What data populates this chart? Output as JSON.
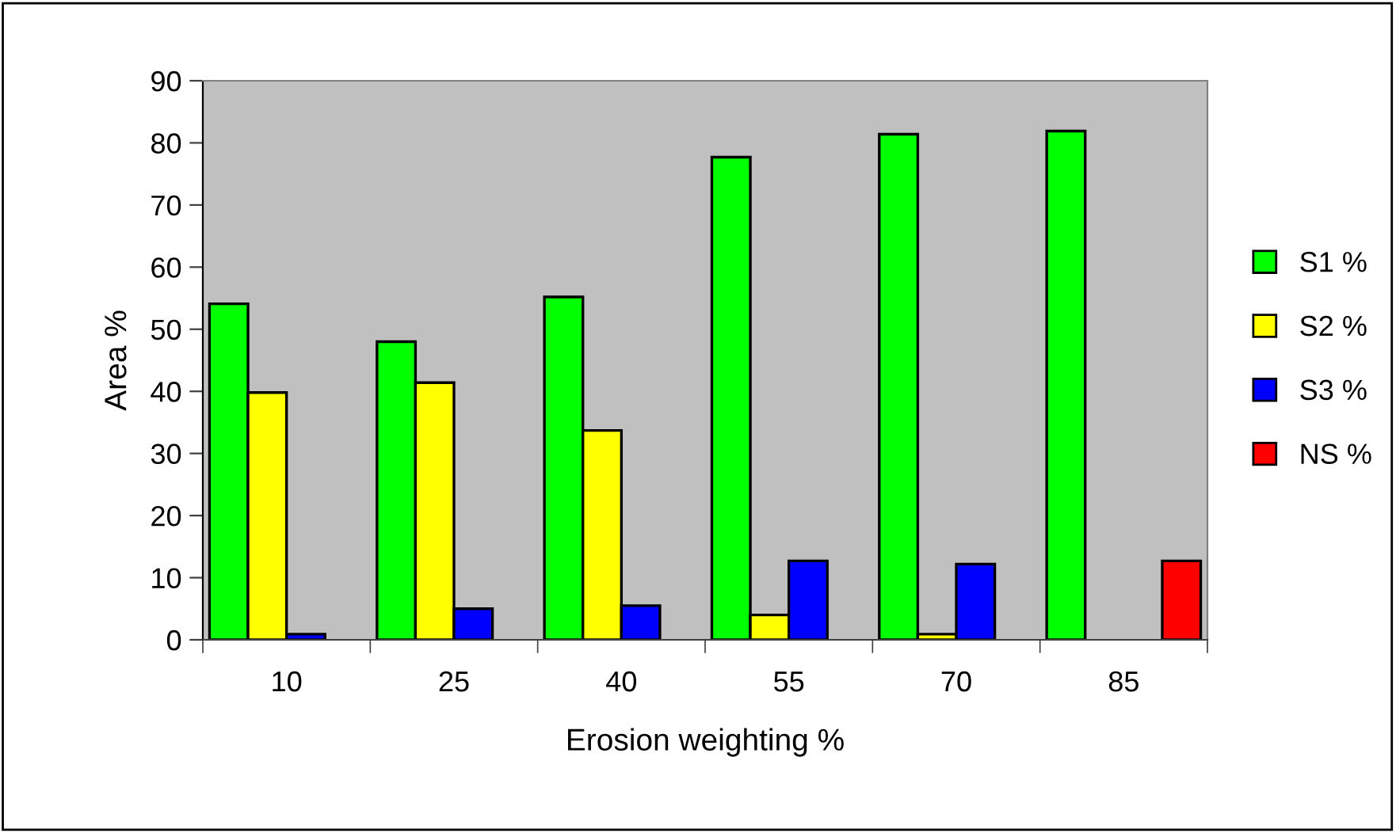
{
  "chart_data": {
    "type": "bar",
    "xlabel": "Erosion weighting %",
    "ylabel": "Area %",
    "categories": [
      "10",
      "25",
      "40",
      "55",
      "70",
      "85"
    ],
    "series": [
      {
        "name": "S1 %",
        "color": "#00ff00",
        "values": [
          54.1,
          48.0,
          55.2,
          77.7,
          81.4,
          81.9
        ]
      },
      {
        "name": "S2 %",
        "color": "#ffff00",
        "values": [
          39.8,
          41.4,
          33.7,
          4.0,
          0.9,
          null
        ]
      },
      {
        "name": "S3 %",
        "color": "#0000ff",
        "values": [
          0.9,
          5.0,
          5.5,
          12.7,
          12.2,
          null
        ]
      },
      {
        "name": "NS %",
        "color": "#ff0000",
        "values": [
          null,
          null,
          null,
          null,
          null,
          12.7
        ]
      }
    ],
    "ylim": [
      0,
      90
    ],
    "yticks": [
      0,
      10,
      20,
      30,
      40,
      50,
      60,
      70,
      80,
      90
    ],
    "grid": false,
    "legend": "right"
  }
}
